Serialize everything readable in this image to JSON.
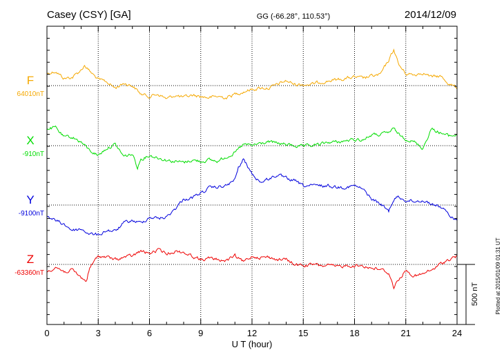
{
  "header": {
    "station": "Casey (CSY)  [GA]",
    "coords": "GG (-66.28°, 110.53°)",
    "date": "2014/12/09"
  },
  "footnote": "Plotted at 2015/01/09 01:31  UT",
  "scale_label": "500 nT",
  "chart_data": {
    "type": "line",
    "xlabel": "U T (hour)",
    "xlim": [
      0,
      24
    ],
    "xticks": [
      "0",
      "3",
      "6",
      "9",
      "12",
      "15",
      "18",
      "21",
      "24"
    ],
    "scale_bar_nT": 500,
    "grid": true,
    "series": [
      {
        "name": "F",
        "baseline_label": "64010nT",
        "color": "#f5a800",
        "baseline": 64010,
        "x": [
          0,
          0.5,
          1,
          1.5,
          2,
          2.2,
          2.5,
          3,
          3.5,
          4,
          4.5,
          5,
          5.5,
          6,
          6.5,
          7,
          7.5,
          8,
          8.5,
          9,
          9.5,
          10,
          10.5,
          11,
          11.5,
          12,
          12.5,
          13,
          13.5,
          14,
          14.5,
          15,
          15.5,
          16,
          16.5,
          17,
          17.5,
          18,
          18.5,
          19,
          19.5,
          20,
          20.3,
          20.6,
          21,
          21.5,
          22,
          22.5,
          23,
          23.5,
          24
        ],
        "y": [
          64110,
          64130,
          64070,
          64080,
          64140,
          64180,
          64130,
          64060,
          64040,
          63990,
          64030,
          64010,
          63940,
          63920,
          63940,
          63900,
          63930,
          63910,
          63930,
          63920,
          63910,
          63920,
          63910,
          63940,
          63960,
          63980,
          63990,
          63990,
          64020,
          64050,
          64020,
          64020,
          64020,
          64040,
          64050,
          64060,
          64070,
          64080,
          64070,
          64090,
          64100,
          64220,
          64310,
          64180,
          64110,
          64100,
          64120,
          64080,
          64090,
          64030,
          63990
        ]
      },
      {
        "name": "X",
        "baseline_label": "-910nT",
        "color": "#00dd00",
        "baseline": -910,
        "x": [
          0,
          0.5,
          1,
          1.5,
          2,
          2.5,
          3,
          3.5,
          4,
          4.5,
          5,
          5.3,
          5.5,
          6,
          6.5,
          7,
          7.5,
          8,
          8.5,
          9,
          9.5,
          10,
          10.5,
          11,
          11.5,
          12,
          12.5,
          13,
          13.5,
          14,
          14.5,
          15,
          15.5,
          16,
          16.5,
          17,
          17.5,
          18,
          18.5,
          19,
          19.5,
          20,
          20.3,
          20.6,
          21,
          21.5,
          22,
          22.5,
          23,
          23.5,
          24
        ],
        "y": [
          -770,
          -760,
          -840,
          -840,
          -880,
          -950,
          -990,
          -930,
          -900,
          -1000,
          -980,
          -1090,
          -1020,
          -990,
          -1010,
          -1030,
          -1040,
          -1050,
          -1030,
          -1040,
          -1030,
          -1040,
          -1000,
          -970,
          -900,
          -910,
          -890,
          -880,
          -890,
          -900,
          -910,
          -920,
          -910,
          -900,
          -880,
          -880,
          -870,
          -860,
          -860,
          -820,
          -820,
          -800,
          -770,
          -820,
          -850,
          -880,
          -930,
          -770,
          -800,
          -830,
          -820
        ]
      },
      {
        "name": "Y",
        "baseline_label": "-9100nT",
        "color": "#0000dd",
        "baseline": -9100,
        "x": [
          0,
          0.5,
          1,
          1.5,
          2,
          2.5,
          3,
          3.5,
          4,
          4.5,
          5,
          5.5,
          6,
          6.5,
          7,
          7.5,
          8,
          8.5,
          9,
          9.5,
          10,
          10.5,
          11,
          11.2,
          11.5,
          12,
          12.5,
          13,
          13.5,
          14,
          14.5,
          15,
          15.5,
          16,
          16.5,
          17,
          17.5,
          18,
          18.5,
          19,
          19.5,
          20,
          20.2,
          20.5,
          21,
          21.5,
          22,
          22.5,
          23,
          23.5,
          24
        ],
        "y": [
          -9190,
          -9230,
          -9260,
          -9310,
          -9300,
          -9340,
          -9350,
          -9310,
          -9320,
          -9250,
          -9230,
          -9250,
          -9200,
          -9210,
          -9200,
          -9130,
          -9050,
          -9040,
          -9000,
          -8960,
          -8950,
          -8940,
          -8890,
          -8790,
          -8720,
          -8840,
          -8910,
          -8880,
          -8850,
          -8880,
          -8900,
          -8940,
          -8940,
          -8940,
          -8940,
          -8950,
          -8950,
          -8940,
          -8970,
          -9050,
          -9090,
          -9150,
          -9080,
          -9030,
          -9060,
          -9070,
          -9060,
          -9090,
          -9110,
          -9180,
          -9230
        ]
      },
      {
        "name": "Z",
        "baseline_label": "-63360nT",
        "color": "#ee0000",
        "baseline": -63360,
        "x": [
          0,
          0.5,
          1,
          1.5,
          2,
          2.3,
          2.5,
          3,
          3.5,
          4,
          4.5,
          5,
          5.5,
          6,
          6.5,
          7,
          7.5,
          8,
          8.5,
          9,
          9.5,
          10,
          10.5,
          11,
          11.5,
          12,
          12.5,
          13,
          13.5,
          14,
          14.5,
          15,
          15.5,
          16,
          16.5,
          17,
          17.5,
          18,
          18.5,
          19,
          19.5,
          20,
          20.3,
          20.6,
          21,
          21.5,
          22,
          22.5,
          23,
          23.5,
          24
        ],
        "y": [
          -63420,
          -63380,
          -63420,
          -63410,
          -63470,
          -63500,
          -63390,
          -63290,
          -63300,
          -63320,
          -63300,
          -63290,
          -63250,
          -63270,
          -63240,
          -63270,
          -63250,
          -63260,
          -63290,
          -63320,
          -63310,
          -63320,
          -63330,
          -63290,
          -63340,
          -63290,
          -63300,
          -63300,
          -63320,
          -63320,
          -63360,
          -63370,
          -63360,
          -63370,
          -63370,
          -63380,
          -63370,
          -63370,
          -63370,
          -63390,
          -63400,
          -63430,
          -63550,
          -63480,
          -63410,
          -63460,
          -63440,
          -63410,
          -63360,
          -63320,
          -63290
        ]
      }
    ]
  }
}
